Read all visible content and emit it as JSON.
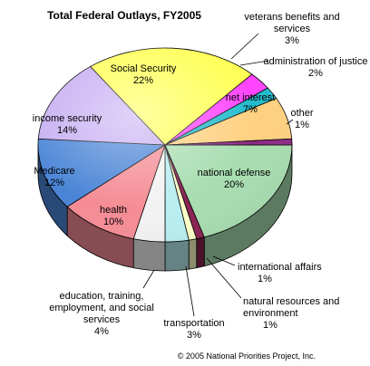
{
  "chart_data": {
    "type": "pie",
    "title": "Total Federal Outlays, FY2005",
    "footer": "© 2005 National Priorities Project, Inc.",
    "slices": [
      {
        "label": "national defense",
        "value": 20,
        "pct_label": "20%",
        "color": "#a8ddb0"
      },
      {
        "label": "international affairs",
        "value": 1,
        "pct_label": "1%",
        "color": "#8a2252"
      },
      {
        "label": "natural resources and environment",
        "value": 1,
        "pct_label": "1%",
        "color": "#ffffc8"
      },
      {
        "label": "transportation",
        "value": 3,
        "pct_label": "3%",
        "color": "#b8eef0"
      },
      {
        "label": "education, training, employment, and social services",
        "value": 4,
        "pct_label": "4%",
        "color": "#f2f2f2"
      },
      {
        "label": "health",
        "value": 10,
        "pct_label": "10%",
        "color": "#f58c95"
      },
      {
        "label": "Medicare",
        "value": 12,
        "pct_label": "12%",
        "color": "#4a84d6"
      },
      {
        "label": "income security",
        "value": 14,
        "pct_label": "14%",
        "color": "#c6aef2"
      },
      {
        "label": "Social Security",
        "value": 22,
        "pct_label": "22%",
        "color": "#ffff55"
      },
      {
        "label": "veterans benefits and services",
        "value": 3,
        "pct_label": "3%",
        "color": "#ff44ff"
      },
      {
        "label": "administration of justice",
        "value": 2,
        "pct_label": "2%",
        "color": "#22bbcc"
      },
      {
        "label": "net interest",
        "value": 7,
        "pct_label": "7%",
        "color": "#ffd080"
      },
      {
        "label": "other",
        "value": 1,
        "pct_label": "1%",
        "color": "#8e2a86"
      }
    ]
  }
}
